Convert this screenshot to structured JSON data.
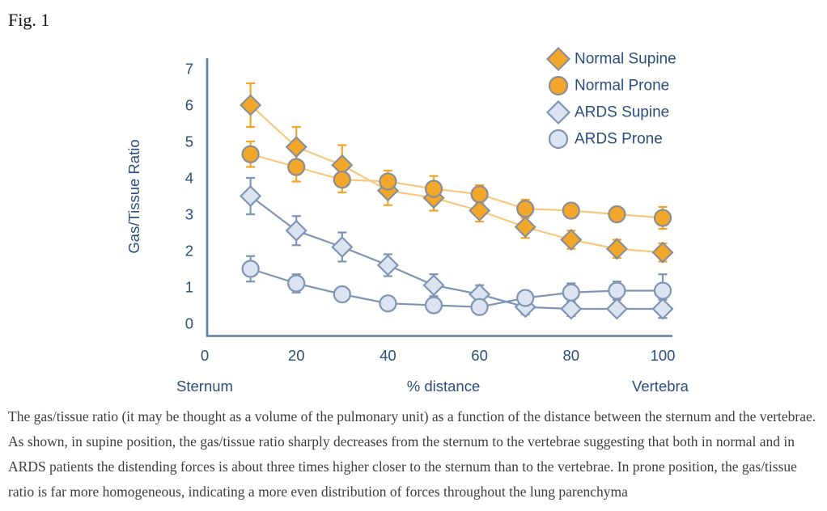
{
  "figure_label": "Fig. 1",
  "caption": "The gas/tissue ratio (it may be thought as a volume of the pulmonary unit) as a function of the distance between the sternum and the vertebrae. As shown, in supine position, the gas/tissue ratio sharply decreases from the sternum to the vertebrae suggesting that both in normal and in ARDS patients the distending forces is about three times higher closer to the sternum than to the vertebrae. In prone position, the gas/tissue ratio is far more homogeneous, indicating a more even distribution of forces throughout the lung parenchyma",
  "colors": {
    "axis": "#5e7f9f",
    "text_blue": "#2b4e7e",
    "orange_fill": "#f3a72a",
    "orange_line": "#f8c87e",
    "orange_marker_stroke": "#8a8f96",
    "ards_fill": "#dce4f2",
    "ards_stroke": "#7e95b5",
    "caption_text": "#3e3e3e"
  },
  "chart_data": {
    "type": "line",
    "x": [
      10,
      20,
      30,
      40,
      50,
      60,
      70,
      80,
      90,
      100
    ],
    "series": [
      {
        "name": "Normal Supine",
        "marker": "diamond",
        "palette": "orange",
        "values": [
          6.0,
          4.85,
          4.35,
          3.65,
          3.45,
          3.1,
          2.65,
          2.3,
          2.05,
          1.95
        ],
        "err": [
          0.6,
          0.55,
          0.55,
          0.4,
          0.35,
          0.3,
          0.3,
          0.25,
          0.25,
          0.25
        ]
      },
      {
        "name": "Normal Prone",
        "marker": "circle",
        "palette": "orange",
        "values": [
          4.65,
          4.3,
          3.95,
          3.9,
          3.7,
          3.55,
          3.15,
          3.1,
          3.0,
          2.9
        ],
        "err": [
          0.35,
          0.4,
          0.35,
          0.3,
          0.35,
          0.25,
          0.25,
          0.2,
          0.2,
          0.3
        ]
      },
      {
        "name": "ARDS Supine",
        "marker": "diamond",
        "palette": "ards",
        "values": [
          3.5,
          2.55,
          2.1,
          1.6,
          1.05,
          0.8,
          0.45,
          0.4,
          0.4,
          0.4
        ],
        "err": [
          0.5,
          0.4,
          0.4,
          0.3,
          0.3,
          0.25,
          0.2,
          0.2,
          0.15,
          0.25
        ]
      },
      {
        "name": "ARDS Prone",
        "marker": "circle",
        "palette": "ards",
        "values": [
          1.5,
          1.1,
          0.8,
          0.55,
          0.5,
          0.45,
          0.7,
          0.85,
          0.9,
          0.9
        ],
        "err": [
          0.35,
          0.25,
          0.2,
          0.15,
          0.15,
          0.15,
          0.2,
          0.25,
          0.25,
          0.45
        ]
      }
    ],
    "ylabel": "Gas/Tissue Ratio",
    "xlabel": "% distance",
    "x_left_label": "Sternum",
    "x_right_label": "Vertebra",
    "y_ticks": [
      0,
      1,
      2,
      3,
      4,
      5,
      6,
      7
    ],
    "x_ticks": [
      0,
      20,
      40,
      60,
      80,
      100
    ],
    "ylim": [
      0,
      7
    ],
    "xlim": [
      0,
      100
    ],
    "grid": false,
    "legend_position": "top-right",
    "legend": [
      "Normal Supine",
      "Normal Prone",
      "ARDS Supine",
      "ARDS Prone"
    ]
  }
}
